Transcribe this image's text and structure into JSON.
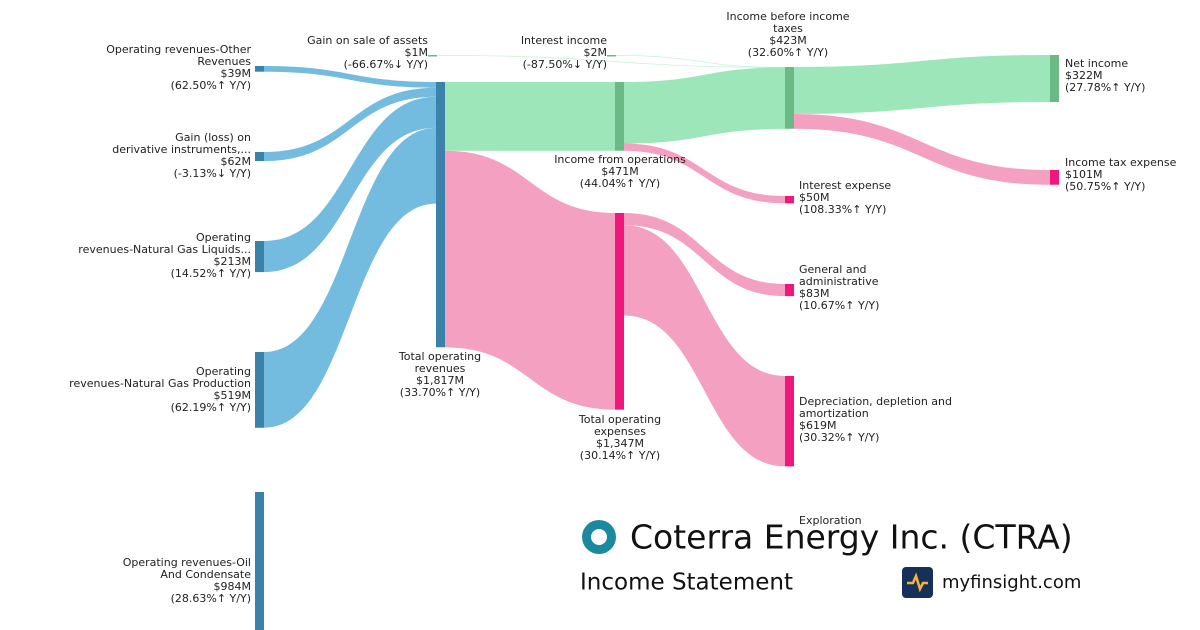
{
  "header": {
    "company": "Coterra Energy Inc. (CTRA)",
    "subtitle": "Income Statement",
    "site": "myfinsight.com"
  },
  "chart_data": {
    "type": "sankey",
    "nodes": [
      {
        "name": [
          "Operating revenues-Other",
          "Revenues"
        ],
        "value": 39,
        "value_label": "$39M",
        "change": "(62.50%↑ Y/Y)",
        "change_color": "#5cb87a",
        "color": "#3a82aa"
      },
      {
        "name": [
          "Gain (loss) on",
          "derivative instruments,..."
        ],
        "value": 62,
        "value_label": "$62M",
        "change": "(-3.13%↓ Y/Y)",
        "change_color": "#e8247c",
        "color": "#3a82aa"
      },
      {
        "name": [
          "Operating",
          "revenues-Natural Gas Liquids..."
        ],
        "value": 213,
        "value_label": "$213M",
        "change": "(14.52%↑ Y/Y)",
        "change_color": "#5cb87a",
        "color": "#3a82aa"
      },
      {
        "name": [
          "Operating",
          "revenues-Natural Gas Production"
        ],
        "value": 519,
        "value_label": "$519M",
        "change": "(62.19%↑ Y/Y)",
        "change_color": "#5cb87a",
        "color": "#3a82aa"
      },
      {
        "name": [
          "Operating revenues-Oil",
          "And Condensate"
        ],
        "value": 984,
        "value_label": "$984M",
        "change": "(28.63%↑ Y/Y)",
        "change_color": "#5cb87a",
        "color": "#3a82aa"
      },
      {
        "name": [
          "Total operating",
          "revenues"
        ],
        "value": 1817,
        "value_label": "$1,817M",
        "change": "(33.70%↑ Y/Y)",
        "change_color": "#5cb87a",
        "color": "#3a82aa"
      },
      {
        "name": [
          "Gain on sale of assets"
        ],
        "value": 1,
        "value_label": "$1M",
        "change": "(-66.67%↓ Y/Y)",
        "change_color": "#e8247c",
        "color": "#6bb985"
      },
      {
        "name": [
          "Interest income"
        ],
        "value": 2,
        "value_label": "$2M",
        "change": "(-87.50%↓ Y/Y)",
        "change_color": "#e8247c",
        "color": "#6bb985"
      },
      {
        "name": [
          "Income from operations"
        ],
        "value": 471,
        "value_label": "$471M",
        "change": "(44.04%↑ Y/Y)",
        "change_color": "#5cb87a",
        "color": "#6bb985"
      },
      {
        "name": [
          "Total operating",
          "expenses"
        ],
        "value": 1347,
        "value_label": "$1,347M",
        "change": "(30.14%↑ Y/Y)",
        "change_color": "#5cb87a",
        "color": "#f0177a"
      },
      {
        "name": [
          "Income before income",
          "taxes"
        ],
        "value": 423,
        "value_label": "$423M",
        "change": "(32.60%↑ Y/Y)",
        "change_color": "#5cb87a",
        "color": "#6bb985"
      },
      {
        "name": [
          "Interest expense"
        ],
        "value": 50,
        "value_label": "$50M",
        "change": "(108.33%↑ Y/Y)",
        "change_color": "#5cb87a",
        "color": "#f0177a"
      },
      {
        "name": [
          "General and",
          "administrative"
        ],
        "value": 83,
        "value_label": "$83M",
        "change": "(10.67%↑ Y/Y)",
        "change_color": "#5cb87a",
        "color": "#f0177a"
      },
      {
        "name": [
          "Depreciation, depletion and",
          "amortization"
        ],
        "value": 619,
        "value_label": "$619M",
        "change": "(30.32%↑ Y/Y)",
        "change_color": "#5cb87a",
        "color": "#f0177a"
      },
      {
        "name": [
          "Exploration"
        ]
      },
      {
        "name": [
          "Net income"
        ],
        "value": 322,
        "value_label": "$322M",
        "change": "(27.78%↑ Y/Y)",
        "change_color": "#5cb87a",
        "color": "#6bb985"
      },
      {
        "name": [
          "Income tax expense"
        ],
        "value": 101,
        "value_label": "$101M",
        "change": "(50.75%↑ Y/Y)",
        "change_color": "#5cb87a",
        "color": "#f0177a"
      }
    ],
    "links": [
      {
        "source": 0,
        "target": 5,
        "value": 39,
        "color": "#6bb8dd"
      },
      {
        "source": 1,
        "target": 5,
        "value": 62,
        "color": "#6bb8dd"
      },
      {
        "source": 2,
        "target": 5,
        "value": 213,
        "color": "#6bb8dd"
      },
      {
        "source": 3,
        "target": 5,
        "value": 519,
        "color": "#6bb8dd"
      },
      {
        "source": 5,
        "target": 8,
        "value": 471,
        "color": "#98e5b5"
      },
      {
        "source": 5,
        "target": 9,
        "value": 1347,
        "color": "#f39bbd"
      },
      {
        "source": 6,
        "target": 10,
        "value": 1,
        "color": "#98e5b5"
      },
      {
        "source": 7,
        "target": 10,
        "value": 2,
        "color": "#98e5b5"
      },
      {
        "source": 8,
        "target": 10,
        "value": 421,
        "color": "#98e5b5"
      },
      {
        "source": 8,
        "target": 11,
        "value": 50,
        "color": "#f39bbd"
      },
      {
        "source": 10,
        "target": 15,
        "value": 322,
        "color": "#98e5b5"
      },
      {
        "source": 10,
        "target": 16,
        "value": 101,
        "color": "#f39bbd"
      },
      {
        "source": 9,
        "target": 12,
        "value": 83,
        "color": "#f39bbd"
      },
      {
        "source": 9,
        "target": 13,
        "value": 619,
        "color": "#f39bbd"
      }
    ]
  }
}
